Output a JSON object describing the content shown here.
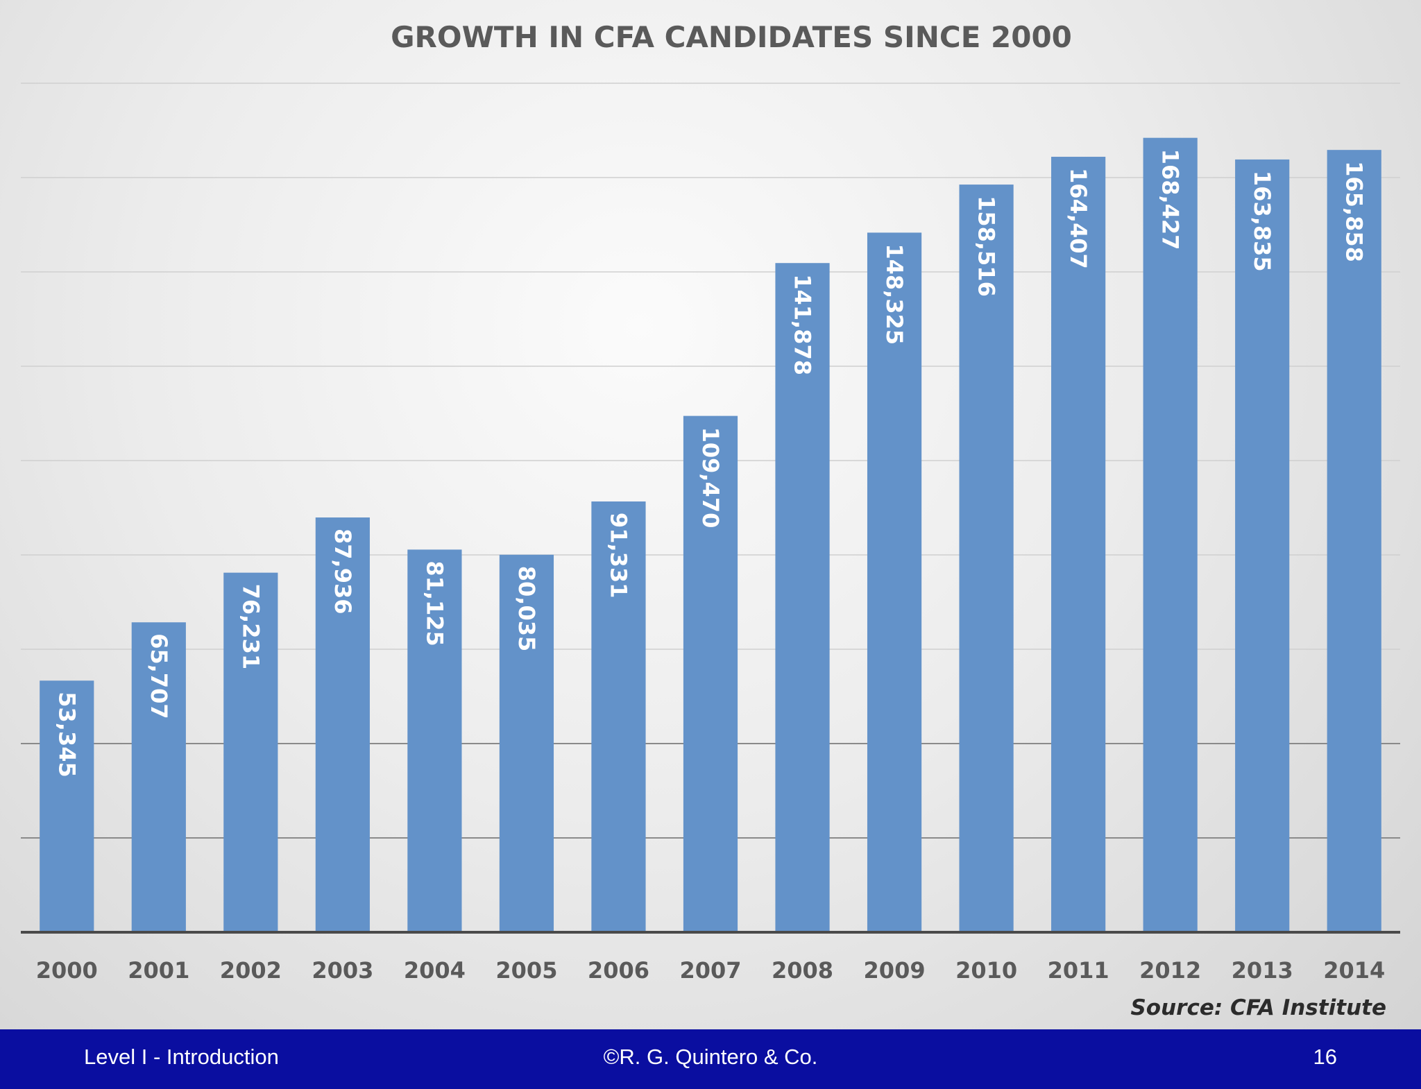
{
  "chart_data": {
    "type": "bar",
    "title": "GROWTH IN CFA CANDIDATES SINCE 2000",
    "categories": [
      "2000",
      "2001",
      "2002",
      "2003",
      "2004",
      "2005",
      "2006",
      "2007",
      "2008",
      "2009",
      "2010",
      "2011",
      "2012",
      "2013",
      "2014"
    ],
    "values": [
      53345,
      65707,
      76231,
      87936,
      81125,
      80035,
      91331,
      109470,
      141878,
      148325,
      158516,
      164407,
      168427,
      163835,
      165858
    ],
    "data_labels": [
      "53,345",
      "65,707",
      "76,231",
      "87,936",
      "81,125",
      "80,035",
      "91,331",
      "109,470",
      "141,878",
      "148,325",
      "158,516",
      "164,407",
      "168,427",
      "163,835",
      "165,858"
    ],
    "ylim": [
      0,
      180000
    ],
    "grid": true,
    "legend": "none",
    "bar_color": "#6392c9",
    "source": "Source:  CFA Institute"
  },
  "footer": {
    "left": "Level I - Introduction",
    "center": "©R. G. Quintero & Co.",
    "right": "16",
    "background": "#0a0ea0"
  }
}
